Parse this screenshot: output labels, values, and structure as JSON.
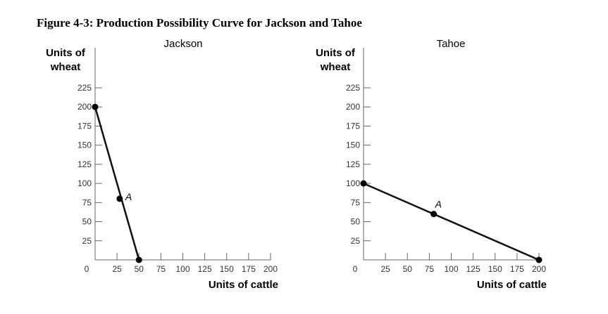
{
  "figure_title": "Figure 4-3: Production Possibility Curve for Jackson and Tahoe",
  "chart_data": [
    {
      "type": "line",
      "title": "Jackson",
      "ylabel_lines": [
        "Units of",
        "wheat"
      ],
      "xlabel": "Units of cattle",
      "xlim": [
        0,
        200
      ],
      "ylim": [
        0,
        225
      ],
      "xticks": [
        0,
        25,
        50,
        75,
        100,
        125,
        150,
        175,
        200
      ],
      "yticks": [
        25,
        50,
        75,
        100,
        125,
        150,
        175,
        200,
        225
      ],
      "grid": false,
      "series": [
        {
          "x": [
            0,
            50
          ],
          "y": [
            200,
            0
          ]
        }
      ],
      "points": [
        {
          "x": 0,
          "y": 200,
          "label": ""
        },
        {
          "x": 28,
          "y": 80,
          "label": "A"
        },
        {
          "x": 50,
          "y": 0,
          "label": ""
        }
      ]
    },
    {
      "type": "line",
      "title": "Tahoe",
      "ylabel_lines": [
        "Units of",
        "wheat"
      ],
      "xlabel": "Units of cattle",
      "xlim": [
        0,
        200
      ],
      "ylim": [
        0,
        225
      ],
      "xticks": [
        0,
        25,
        50,
        75,
        100,
        125,
        150,
        175,
        200
      ],
      "yticks": [
        25,
        50,
        75,
        100,
        125,
        150,
        175,
        200,
        225
      ],
      "grid": false,
      "series": [
        {
          "x": [
            0,
            200
          ],
          "y": [
            100,
            0
          ]
        }
      ],
      "points": [
        {
          "x": 0,
          "y": 100,
          "label": ""
        },
        {
          "x": 80,
          "y": 60,
          "label": "A"
        },
        {
          "x": 200,
          "y": 0,
          "label": ""
        }
      ]
    }
  ]
}
